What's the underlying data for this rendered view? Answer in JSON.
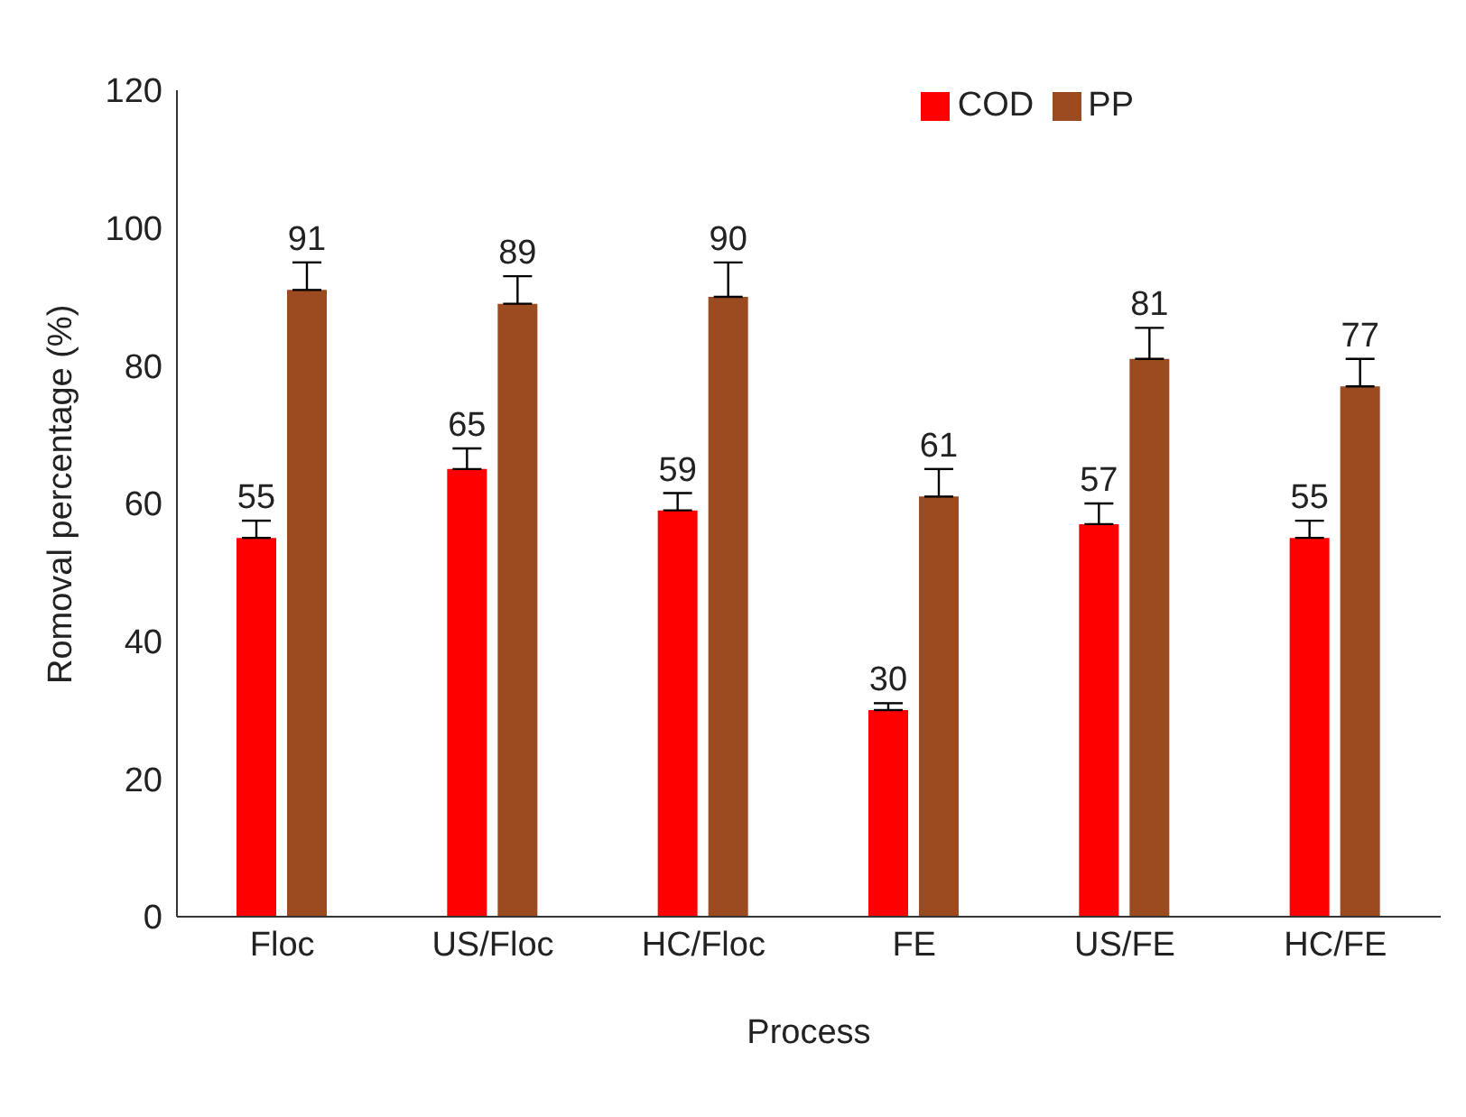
{
  "chart_data": {
    "type": "bar",
    "xlabel": "Process",
    "ylabel": "Romoval percentage (%)",
    "categories": [
      "Floc",
      "US/Floc",
      "HC/Floc",
      "FE",
      "US/FE",
      "HC/FE"
    ],
    "series": [
      {
        "name": "COD",
        "color": "#ff0000",
        "values": [
          55,
          65,
          59,
          30,
          57,
          55
        ],
        "errors": [
          [
            55,
            57.5
          ],
          [
            65,
            68
          ],
          [
            59,
            61.5
          ],
          [
            30,
            31
          ],
          [
            57,
            60
          ],
          [
            55,
            57.5
          ]
        ]
      },
      {
        "name": "PP",
        "color": "#9c4a1f",
        "values": [
          91,
          89,
          90,
          61,
          81,
          77
        ],
        "errors": [
          [
            91,
            95
          ],
          [
            89,
            93
          ],
          [
            90,
            95
          ],
          [
            61,
            65
          ],
          [
            81,
            85.5
          ],
          [
            77,
            81
          ]
        ]
      }
    ],
    "ylim": [
      0,
      120
    ],
    "yticks": [
      0,
      20,
      40,
      60,
      80,
      100,
      120
    ],
    "grid": false,
    "legend": "top right",
    "data_labels": true
  }
}
